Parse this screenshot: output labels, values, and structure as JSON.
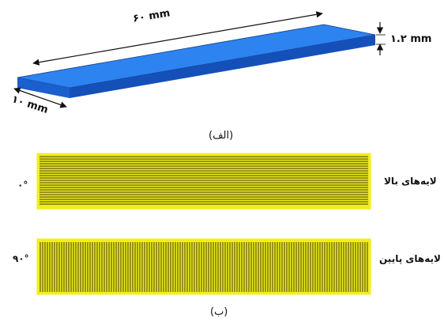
{
  "part_a": {
    "length_label": "۶۰ mm",
    "width_label": "۱۰ mm",
    "thickness_label": "۱.۲ mm",
    "caption": "(الف)"
  },
  "part_b": {
    "top_layers": {
      "label": "لایه‌های بالا",
      "angle": "۰°"
    },
    "bottom_layers": {
      "label": "لایه‌های پایین",
      "angle": "۹۰°"
    },
    "caption": "(ب)"
  },
  "colors": {
    "plate_top": "#2d83f0",
    "plate_front": "#1550b8",
    "plate_side": "#1a5fcc",
    "raster_fill": "#f2ee1a",
    "raster_line": "#3a3a10"
  }
}
